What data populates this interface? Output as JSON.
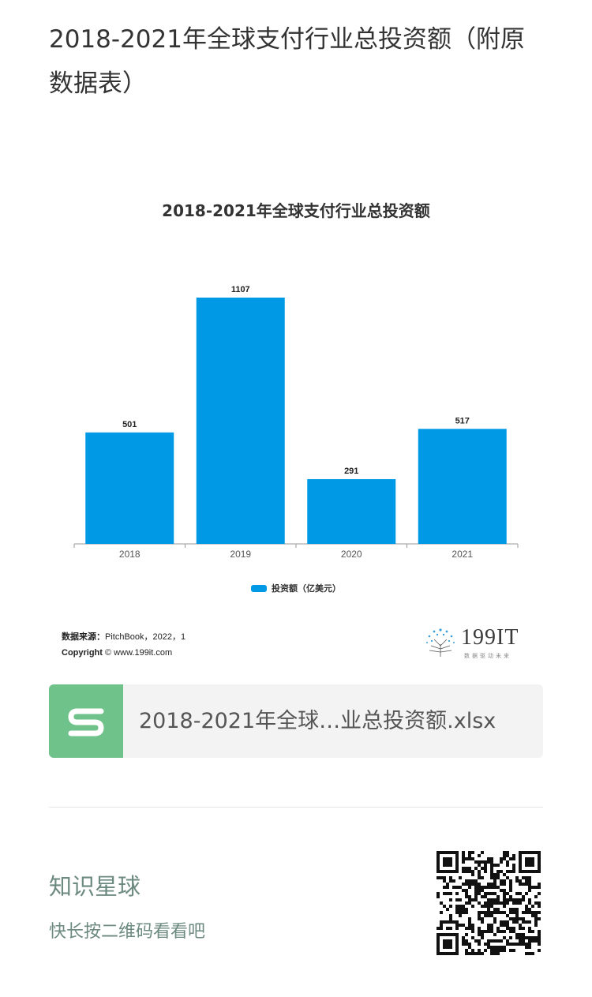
{
  "page": {
    "title": "2018-2021年全球支付行业总投资额（附原数据表）"
  },
  "chart_data": {
    "type": "bar",
    "title": "2018-2021年全球支付行业总投资额",
    "categories": [
      "2018",
      "2019",
      "2020",
      "2021"
    ],
    "series": [
      {
        "name": "投资额（亿美元）",
        "values": [
          501,
          1107,
          291,
          517
        ]
      }
    ],
    "xlabel": "",
    "ylabel": "",
    "ylim": [
      0,
      1200
    ],
    "grid": false,
    "legend_position": "bottom",
    "bar_color": "#0099e6"
  },
  "chart_footer": {
    "source_label": "数据来源：",
    "source_value": "PitchBook，2022，1",
    "copyright_label": "Copyright",
    "copyright_value": "© www.199it.com"
  },
  "brand": {
    "logo_text": "199IT",
    "tagline": "数据驱动未来"
  },
  "file_card": {
    "icon": "spreadsheet-s-icon",
    "file_name": "2018-2021年全球…业总投资额.xlsx"
  },
  "footer": {
    "heading": "知识星球",
    "subtext": "快长按二维码看看吧"
  },
  "colors": {
    "bar": "#0099e6",
    "file_icon_bg": "#6ec28a",
    "footer_text": "#6d8a80"
  }
}
